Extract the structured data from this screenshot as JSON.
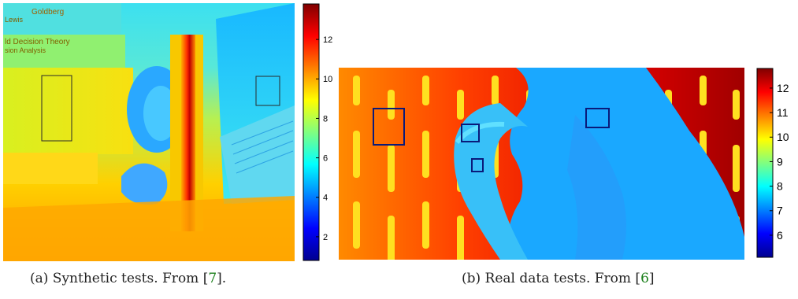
{
  "panel_a": {
    "image_text": [
      "Goldberg",
      "ld Decision Theory",
      "sion Analysis",
      "Lewis"
    ],
    "colorbar": {
      "ticks": [
        "2",
        "4",
        "6",
        "8",
        "10",
        "12"
      ],
      "range": [
        0.8,
        13.8
      ]
    },
    "caption": {
      "prefix": "(a) Synthetic tests. From [",
      "ref": "7",
      "suffix": "]."
    }
  },
  "panel_b": {
    "colorbar": {
      "ticks": [
        "6",
        "7",
        "8",
        "9",
        "10",
        "11",
        "12"
      ],
      "range": [
        5.1,
        12.8
      ]
    },
    "caption": {
      "prefix": "(b) Real data tests. From [",
      "ref": "6",
      "suffix": "]"
    }
  },
  "colors": {
    "jet": [
      "#00008f",
      "#0000ff",
      "#0080ff",
      "#00ffff",
      "#80ff80",
      "#ffff00",
      "#ff8000",
      "#ff0000",
      "#800000"
    ],
    "box_a": "#2a2a2a",
    "box_b": "#0a1a7a",
    "citation": "#1a7f1a"
  }
}
